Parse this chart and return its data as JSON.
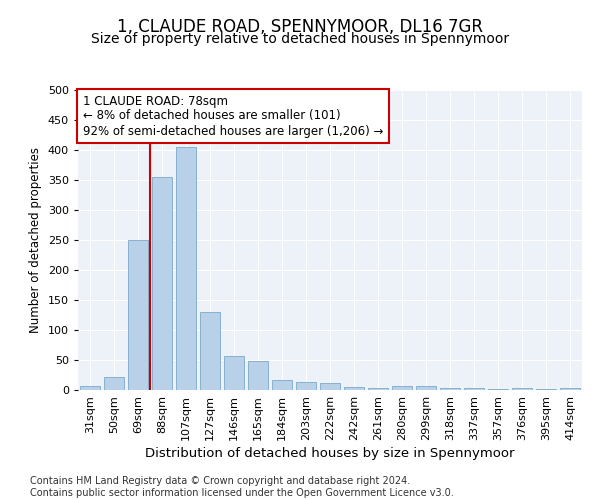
{
  "title": "1, CLAUDE ROAD, SPENNYMOOR, DL16 7GR",
  "subtitle": "Size of property relative to detached houses in Spennymoor",
  "xlabel": "Distribution of detached houses by size in Spennymoor",
  "ylabel": "Number of detached properties",
  "categories": [
    "31sqm",
    "50sqm",
    "69sqm",
    "88sqm",
    "107sqm",
    "127sqm",
    "146sqm",
    "165sqm",
    "184sqm",
    "203sqm",
    "222sqm",
    "242sqm",
    "261sqm",
    "280sqm",
    "299sqm",
    "318sqm",
    "337sqm",
    "357sqm",
    "376sqm",
    "395sqm",
    "414sqm"
  ],
  "values": [
    6,
    22,
    250,
    355,
    405,
    130,
    57,
    48,
    17,
    14,
    12,
    5,
    3,
    6,
    6,
    4,
    3,
    1,
    3,
    1,
    3
  ],
  "bar_color": "#b8d0e8",
  "bar_edge_color": "#7aaac8",
  "vline_x": 3.0,
  "vline_color": "#cc0000",
  "annotation_text": "1 CLAUDE ROAD: 78sqm\n← 8% of detached houses are smaller (101)\n92% of semi-detached houses are larger (1,206) →",
  "annotation_box_color": "#ffffff",
  "annotation_box_edge": "#cc0000",
  "ylim": [
    0,
    500
  ],
  "yticks": [
    0,
    50,
    100,
    150,
    200,
    250,
    300,
    350,
    400,
    450,
    500
  ],
  "footer": "Contains HM Land Registry data © Crown copyright and database right 2024.\nContains public sector information licensed under the Open Government Licence v3.0.",
  "bg_color": "#edf2f9",
  "fig_bg_color": "#ffffff",
  "title_fontsize": 12,
  "subtitle_fontsize": 10,
  "xlabel_fontsize": 9.5,
  "ylabel_fontsize": 8.5,
  "footer_fontsize": 7,
  "tick_fontsize": 8,
  "annotation_fontsize": 8.5
}
